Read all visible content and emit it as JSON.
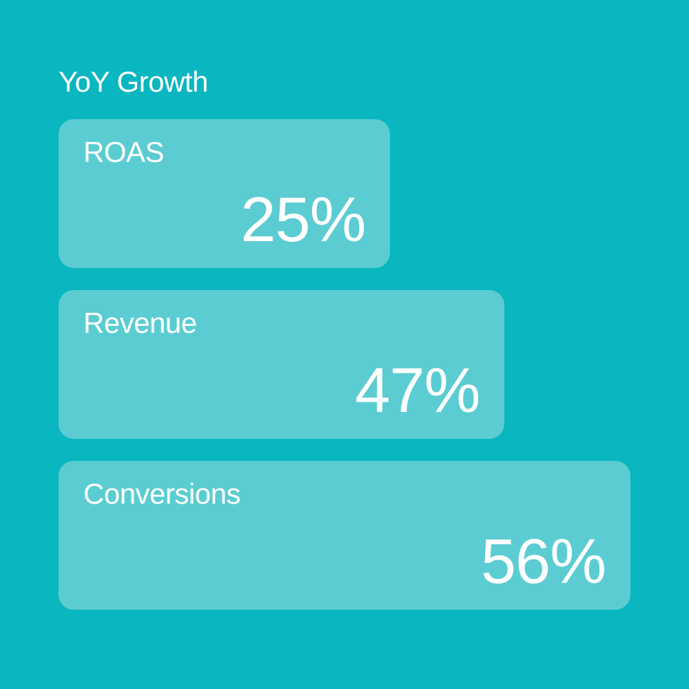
{
  "chart": {
    "type": "bar",
    "title": "YoY Growth",
    "title_fontsize": 42,
    "title_color": "#ffffff",
    "background_color": "#0ab6c0",
    "bar_background_color": "#5bcdd2",
    "bar_border_radius": 22,
    "label_fontsize": 42,
    "label_color": "#ffffff",
    "value_fontsize": 92,
    "value_color": "#ffffff",
    "bars": [
      {
        "label": "ROAS",
        "value": "25%",
        "width_percent": 58
      },
      {
        "label": "Revenue",
        "value": "47%",
        "width_percent": 78
      },
      {
        "label": "Conversions",
        "value": "56%",
        "width_percent": 100
      }
    ]
  }
}
